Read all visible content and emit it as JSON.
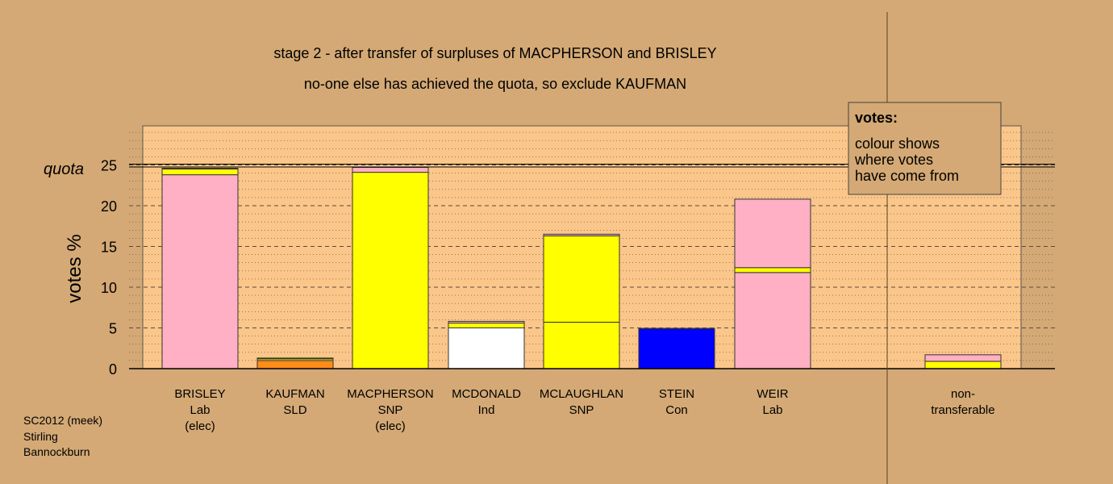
{
  "title_line1": "stage 2 - after transfer of surpluses of MACPHERSON and BRISLEY",
  "title_line2": "no-one else has achieved the quota, so exclude KAUFMAN",
  "ylabel": "votes %",
  "quota_label": "quota",
  "legend": {
    "heading": "votes:",
    "lines": [
      "colour shows",
      "where votes",
      "have come from"
    ]
  },
  "footnote": [
    "SC2012 (meek)",
    "Stirling",
    "Bannockburn"
  ],
  "colors": {
    "background": "#d4a975",
    "plot_area": "#fbc68a",
    "Lab": "#ffb0c4",
    "SNP": "#ffff00",
    "SLD": "#ff8c1a",
    "Ind": "#ffffff",
    "Con": "#0000ff"
  },
  "chart_data": {
    "type": "bar",
    "stacked": true,
    "ylim": [
      0,
      25
    ],
    "yticks": [
      0,
      5,
      10,
      15,
      20,
      25
    ],
    "quota": 24.7,
    "categories": [
      {
        "name": "BRISLEY",
        "party": "Lab",
        "note": "(elec)"
      },
      {
        "name": "KAUFMAN",
        "party": "SLD",
        "note": ""
      },
      {
        "name": "MACPHERSON",
        "party": "SNP",
        "note": "(elec)"
      },
      {
        "name": "MCDONALD",
        "party": "Ind",
        "note": ""
      },
      {
        "name": "MCLAUGHLAN",
        "party": "SNP",
        "note": ""
      },
      {
        "name": "STEIN",
        "party": "Con",
        "note": ""
      },
      {
        "name": "WEIR",
        "party": "Lab",
        "note": ""
      },
      {
        "name": "",
        "party": "",
        "note": ""
      },
      {
        "name": "non-",
        "party": "transferable",
        "note": ""
      }
    ],
    "stacks": [
      [
        {
          "from": "Lab",
          "value": 23.8
        },
        {
          "from": "SNP",
          "value": 0.7
        },
        {
          "from": "Lab",
          "value": 0.1
        }
      ],
      [
        {
          "from": "SLD",
          "value": 1.0
        },
        {
          "from": "SNP",
          "value": 0.2
        },
        {
          "from": "Lab",
          "value": 0.1
        }
      ],
      [
        {
          "from": "SNP",
          "value": 24.1
        },
        {
          "from": "Lab",
          "value": 0.6
        }
      ],
      [
        {
          "from": "Ind",
          "value": 5.0
        },
        {
          "from": "SNP",
          "value": 0.6
        },
        {
          "from": "Lab",
          "value": 0.2
        }
      ],
      [
        {
          "from": "SNP",
          "value": 5.7
        },
        {
          "from": "SNP",
          "value": 10.6
        },
        {
          "from": "Lab",
          "value": 0.2
        }
      ],
      [
        {
          "from": "Con",
          "value": 4.9
        },
        {
          "from": "SNP",
          "value": 0.05
        }
      ],
      [
        {
          "from": "Lab",
          "value": 11.8
        },
        {
          "from": "SNP",
          "value": 0.6
        },
        {
          "from": "Lab",
          "value": 8.4
        }
      ],
      [],
      [
        {
          "from": "SNP",
          "value": 0.9
        },
        {
          "from": "Lab",
          "value": 0.8
        }
      ]
    ]
  }
}
